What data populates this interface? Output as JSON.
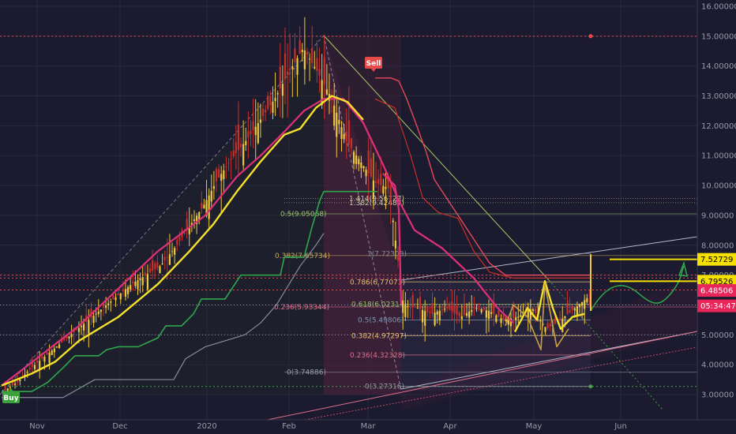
{
  "chart_data": {
    "type": "line",
    "series": [
      {
        "values": [
          3.1,
          3.4,
          3.9,
          4.3,
          4.7,
          5.1,
          5.5,
          5.9,
          6.3,
          6.7,
          7.0,
          7.3,
          7.9,
          8.6,
          9.3,
          10.2,
          10.9,
          11.5,
          12.2,
          12.9,
          13.8,
          14.6,
          13.8,
          12.9,
          11.5,
          10.8,
          10.1,
          9.9,
          6.0,
          5.9,
          5.7,
          5.9,
          5.6,
          5.9,
          5.8,
          5.5,
          5.6,
          5.9,
          5.2,
          5.5,
          5.9,
          6.3
        ]
      }
    ],
    "y_ticks": [
      "16.00000",
      "15.00000",
      "14.00000",
      "13.00000",
      "12.00000",
      "11.00000",
      "10.00000",
      "9.00000",
      "8.00000",
      "7.00000",
      "6.00000",
      "5.00000",
      "4.00000",
      "3.00000"
    ],
    "x_ticks": [
      "Nov",
      "Dec",
      "2020",
      "Feb",
      "Mar",
      "Apr",
      "May",
      "Jun"
    ],
    "ylim": [
      2.55,
      16.2
    ],
    "fib_upper": [
      {
        "label": "1.414(9.56727)",
        "value": 9.567,
        "color": "#c8c8a0"
      },
      {
        "label": "1.382(9.42487)",
        "value": 9.425,
        "color": "#c8c8a0"
      },
      {
        "label": "0.5(9.05068)",
        "value": 9.051,
        "color": "#9cc26b"
      },
      {
        "label": "0.382(7.65734)",
        "value": 7.657,
        "color": "#c8a85a"
      },
      {
        "label": "0.236(5.93344)",
        "value": 5.933,
        "color": "#e0708a"
      },
      {
        "label": "0(3.74886)",
        "value": 3.749,
        "color": "#9a9aaa"
      }
    ],
    "fib_lower": [
      {
        "label": "1(7.72308)",
        "value": 7.723,
        "color": "#8a8a9a"
      },
      {
        "label": "0.786(6.77073)",
        "value": 6.771,
        "color": "#e8c070"
      },
      {
        "label": "0.618(6.02314)",
        "value": 6.023,
        "color": "#9cc26b"
      },
      {
        "label": "0.5(5.49806)",
        "value": 5.498,
        "color": "#7a9ab0"
      },
      {
        "label": "0.382(4.97297)",
        "value": 4.973,
        "color": "#e8c070"
      },
      {
        "label": "0.236(4.32328)",
        "value": 4.323,
        "color": "#e0708a"
      },
      {
        "label": "0(3.27316)",
        "value": 3.273,
        "color": "#9a9aaa"
      }
    ],
    "price_tags": [
      {
        "label": "7.52729",
        "value": 7.527,
        "bg": "#f5e000",
        "fg": "#000000"
      },
      {
        "label": "6.79526",
        "value": 6.795,
        "bg": "#f5e000",
        "fg": "#000000"
      },
      {
        "label": "6.48506",
        "value": 6.485,
        "bg": "#e8265a",
        "fg": "#ffffff"
      },
      {
        "label": "05:34:47",
        "value": 5.97,
        "bg": "#e8265a",
        "fg": "#ffffff"
      }
    ],
    "signals": [
      {
        "label": "Buy",
        "color": "#3aa33a"
      },
      {
        "label": "Sell",
        "color": "#e84a4a"
      }
    ]
  }
}
